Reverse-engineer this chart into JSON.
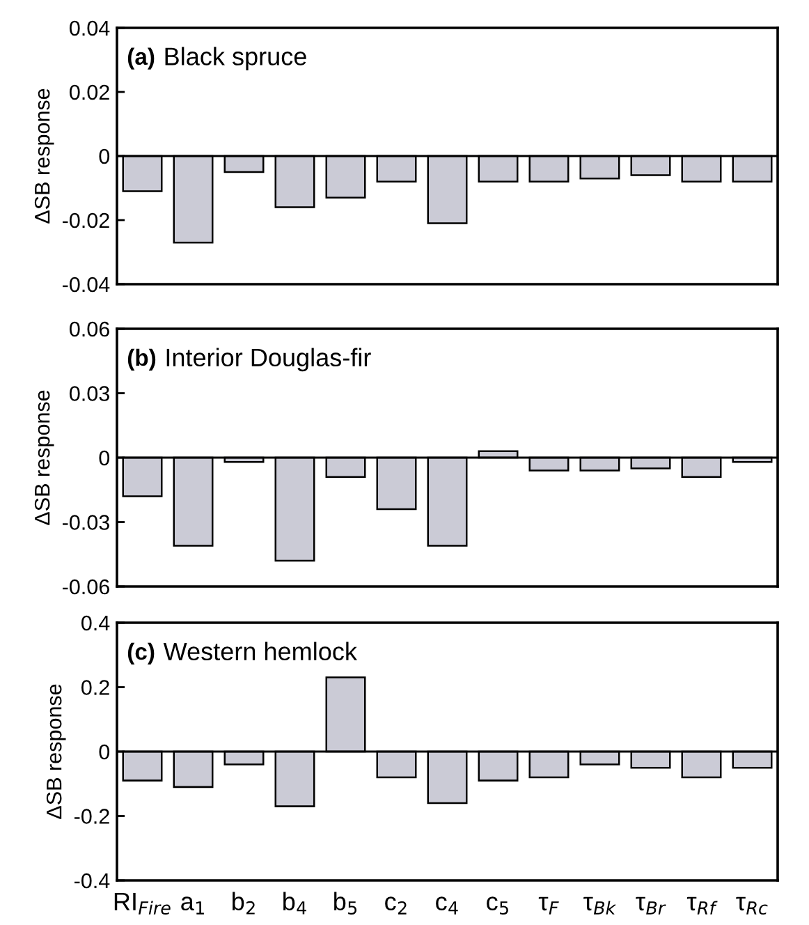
{
  "chart_data": [
    {
      "type": "bar",
      "title": "(a) Black spruce",
      "ylabel": "ΔSB response",
      "values": [
        -0.011,
        -0.027,
        -0.005,
        -0.016,
        -0.013,
        -0.008,
        -0.021,
        -0.008,
        -0.008,
        -0.007,
        -0.006,
        -0.008,
        -0.008
      ],
      "color": "#cbcbd6",
      "ylim": [
        -0.04,
        0.04
      ],
      "yticks": [
        -0.04,
        -0.02,
        0,
        0.02,
        0.04
      ],
      "tick_labels": "y",
      "grid": false,
      "ref_lines": [
        {
          "axis": "y",
          "value": 0
        }
      ]
    },
    {
      "type": "bar",
      "title": "(b) Interior Douglas-fir",
      "ylabel": "ΔSB response",
      "values": [
        -0.018,
        -0.041,
        -0.002,
        -0.048,
        -0.009,
        -0.024,
        -0.041,
        0.003,
        -0.006,
        -0.006,
        -0.005,
        -0.009,
        -0.002
      ],
      "color": "#cbcbd6",
      "ylim": [
        -0.06,
        0.06
      ],
      "yticks": [
        -0.06,
        -0.03,
        0,
        0.03,
        0.06
      ],
      "tick_labels": "y",
      "grid": false,
      "ref_lines": [
        {
          "axis": "y",
          "value": 0
        }
      ]
    },
    {
      "type": "bar",
      "title": "(c) Western hemlock",
      "ylabel": "ΔSB response",
      "categories": [
        "RI$_{Fire}$",
        "a$_{1}$",
        "b$_{2}$",
        "b$_{4}$",
        "b$_{5}$",
        "c$_{2}$",
        "c$_{4}$",
        "c$_{5}$",
        "τ$_{F}$",
        "τ$_{Bk}$",
        "τ$_{Br}$",
        "τ$_{Rf}$",
        "τ$_{Rc}$"
      ],
      "values": [
        -0.09,
        -0.11,
        -0.04,
        -0.17,
        0.23,
        -0.08,
        -0.16,
        -0.09,
        -0.08,
        -0.04,
        -0.05,
        -0.08,
        -0.05
      ],
      "color": "#cbcbd6",
      "ylim": [
        -0.4,
        0.4
      ],
      "yticks": [
        -0.4,
        -0.2,
        0,
        0.2,
        0.4
      ],
      "grid": false,
      "ref_lines": [
        {
          "axis": "y",
          "value": 0
        }
      ]
    }
  ]
}
